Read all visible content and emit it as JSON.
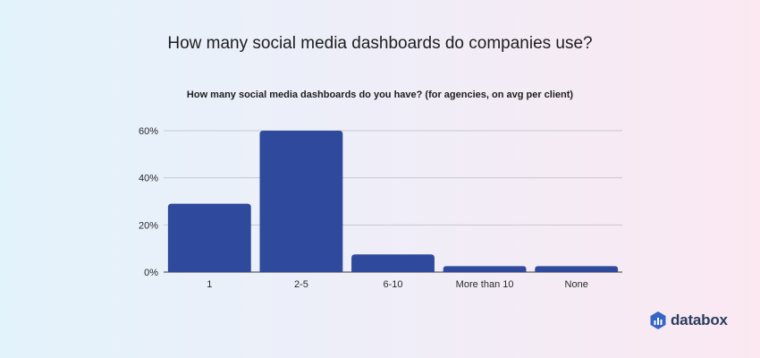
{
  "title": "How many social media dashboards do companies use?",
  "brand": {
    "name": "databox",
    "icon": "databox-logo-icon",
    "color": "#3565c5"
  },
  "colors": {
    "bar": "#2f4a9c",
    "grid": "#c8c8d0",
    "axis": "#3a3a3a"
  },
  "chart_data": {
    "type": "bar",
    "title": "How many social media dashboards do you have? (for agencies, on avg per client)",
    "xlabel": "",
    "ylabel": "",
    "categories": [
      "1",
      "2-5",
      "6-10",
      "More than 10",
      "None"
    ],
    "values": [
      29,
      60,
      7.5,
      2.5,
      2.5
    ],
    "unit": "%",
    "ylim": [
      0,
      60
    ],
    "yticks": [
      0,
      20,
      40,
      60
    ],
    "ytick_labels": [
      "0%",
      "20%",
      "40%",
      "60%"
    ],
    "grid": true,
    "legend": "none"
  }
}
